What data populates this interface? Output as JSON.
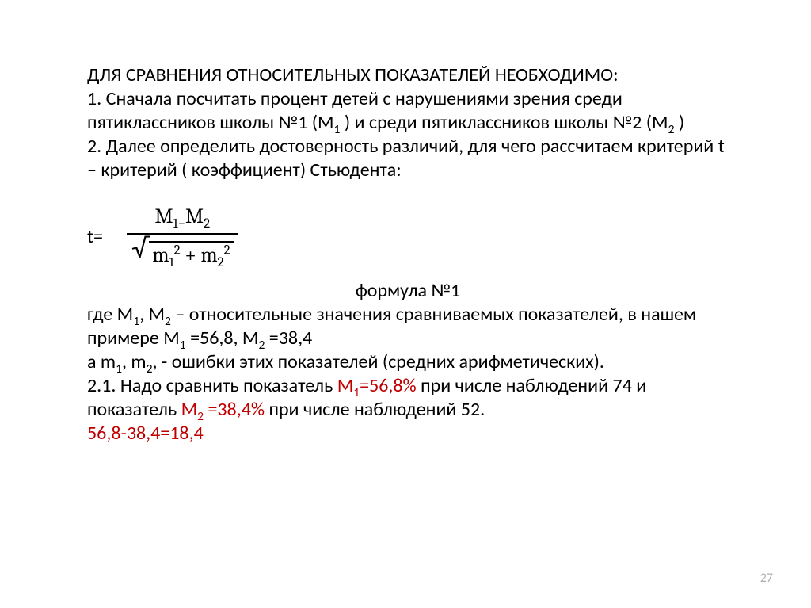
{
  "header": "ДЛЯ СРАВНЕНИЯ ОТНОСИТЕЛЬНЫХ ПОКАЗАТЕЛЕЙ НЕОБХОДИМО:",
  "p1a": "1. Сначала посчитать процент детей с нарушениями зрения среди пятиклассников  школы №1 (М",
  "p1b": " ) и среди пятиклассников школы №2 (М",
  "p1c": " )",
  "p2": "2. Далее определить достоверность различий, для чего рассчитаем критерий t – критерий ( коэффициент) Стьюдента:",
  "tEq": "t=",
  "formula": {
    "num_M1": "M",
    "num_M2": "M",
    "minus": "−",
    "den_m1": "m",
    "den_m2": "m",
    "plus": " + "
  },
  "formulaLabel": "формула №1",
  "p3a": "где М",
  "p3b": ", М",
  "p3c": " – относительные значения сравниваемых показателей, в нашем примере М",
  "p3d": " =56,8, М",
  "p3e": " =38,4",
  "p4a": " а m",
  "p4b": ", m",
  "p4c": ", - ошибки этих показателей (средних арифметических).",
  "p5a": "2.1. Надо сравнить показатель ",
  "p5red1": "М",
  "p5red1b": "=56,8%",
  "p5b": " при числе наблюдений 74 и показатель ",
  "p5red2": "М",
  "p5red2b": " =38,4%",
  "p5c": " при числе наблюдений 52.",
  "p6": "56,8-38,4=18,4",
  "pageNumber": "27",
  "subs": {
    "s1": "1",
    "s2": "2"
  },
  "sups": {
    "sq": "2"
  }
}
